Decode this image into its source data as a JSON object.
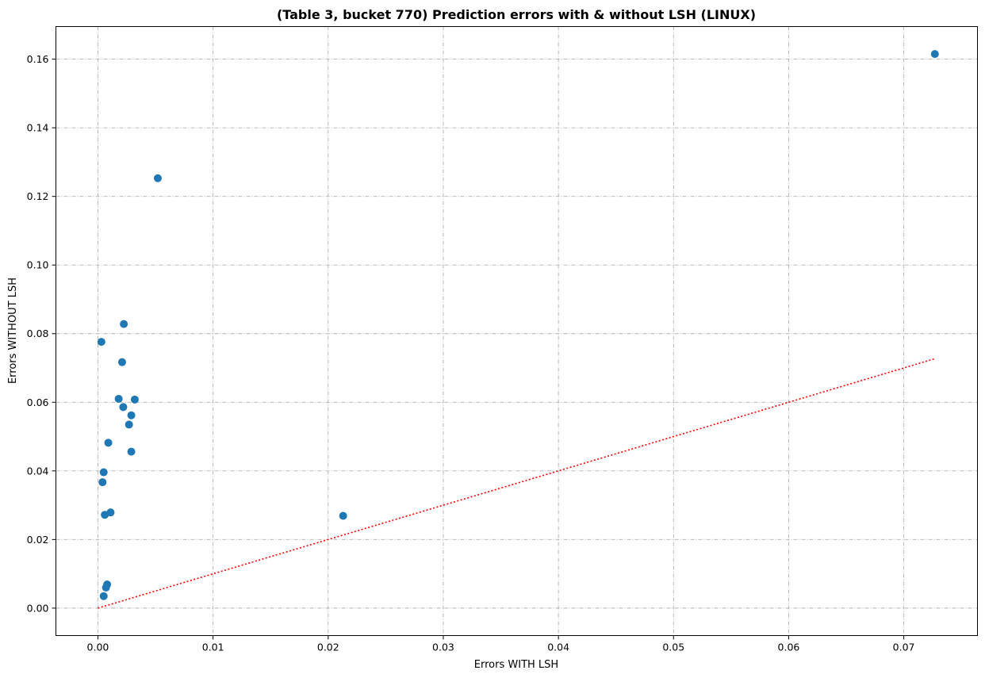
{
  "chart_data": {
    "type": "scatter",
    "title": "(Table 3, bucket 770) Prediction errors with & without LSH (LINUX)",
    "xlabel": "Errors WITH LSH",
    "ylabel": "Errors WITHOUT LSH",
    "xlim": [
      -0.00365,
      0.0764
    ],
    "ylim": [
      -0.008,
      0.1695
    ],
    "xticks": [
      0.0,
      0.01,
      0.02,
      0.03,
      0.04,
      0.05,
      0.06,
      0.07
    ],
    "xtick_labels": [
      "0.00",
      "0.01",
      "0.02",
      "0.03",
      "0.04",
      "0.05",
      "0.06",
      "0.07"
    ],
    "yticks": [
      0.0,
      0.02,
      0.04,
      0.06,
      0.08,
      0.1,
      0.12,
      0.14,
      0.16
    ],
    "ytick_labels": [
      "0.00",
      "0.02",
      "0.04",
      "0.06",
      "0.08",
      "0.10",
      "0.12",
      "0.14",
      "0.16"
    ],
    "grid": true,
    "point_color": "#1f77b4",
    "line_color": "#ff0000",
    "series": [
      {
        "x": [
          0.0727,
          0.0052,
          0.00225,
          0.0003,
          0.0021,
          0.0018,
          0.0032,
          0.0022,
          0.0029,
          0.0027,
          0.0009,
          0.0029,
          0.0005,
          0.0004,
          0.0011,
          0.0006,
          0.0213,
          0.0008,
          0.0007,
          0.0005
        ],
        "y": [
          0.1615,
          0.1253,
          0.0828,
          0.0776,
          0.0717,
          0.061,
          0.0608,
          0.0586,
          0.0562,
          0.0535,
          0.0482,
          0.0456,
          0.0396,
          0.0367,
          0.0279,
          0.0272,
          0.0269,
          0.0069,
          0.006,
          0.0035
        ]
      }
    ],
    "reference_line": {
      "x": [
        0.0,
        0.0727
      ],
      "y": [
        0.0,
        0.0727
      ]
    }
  }
}
